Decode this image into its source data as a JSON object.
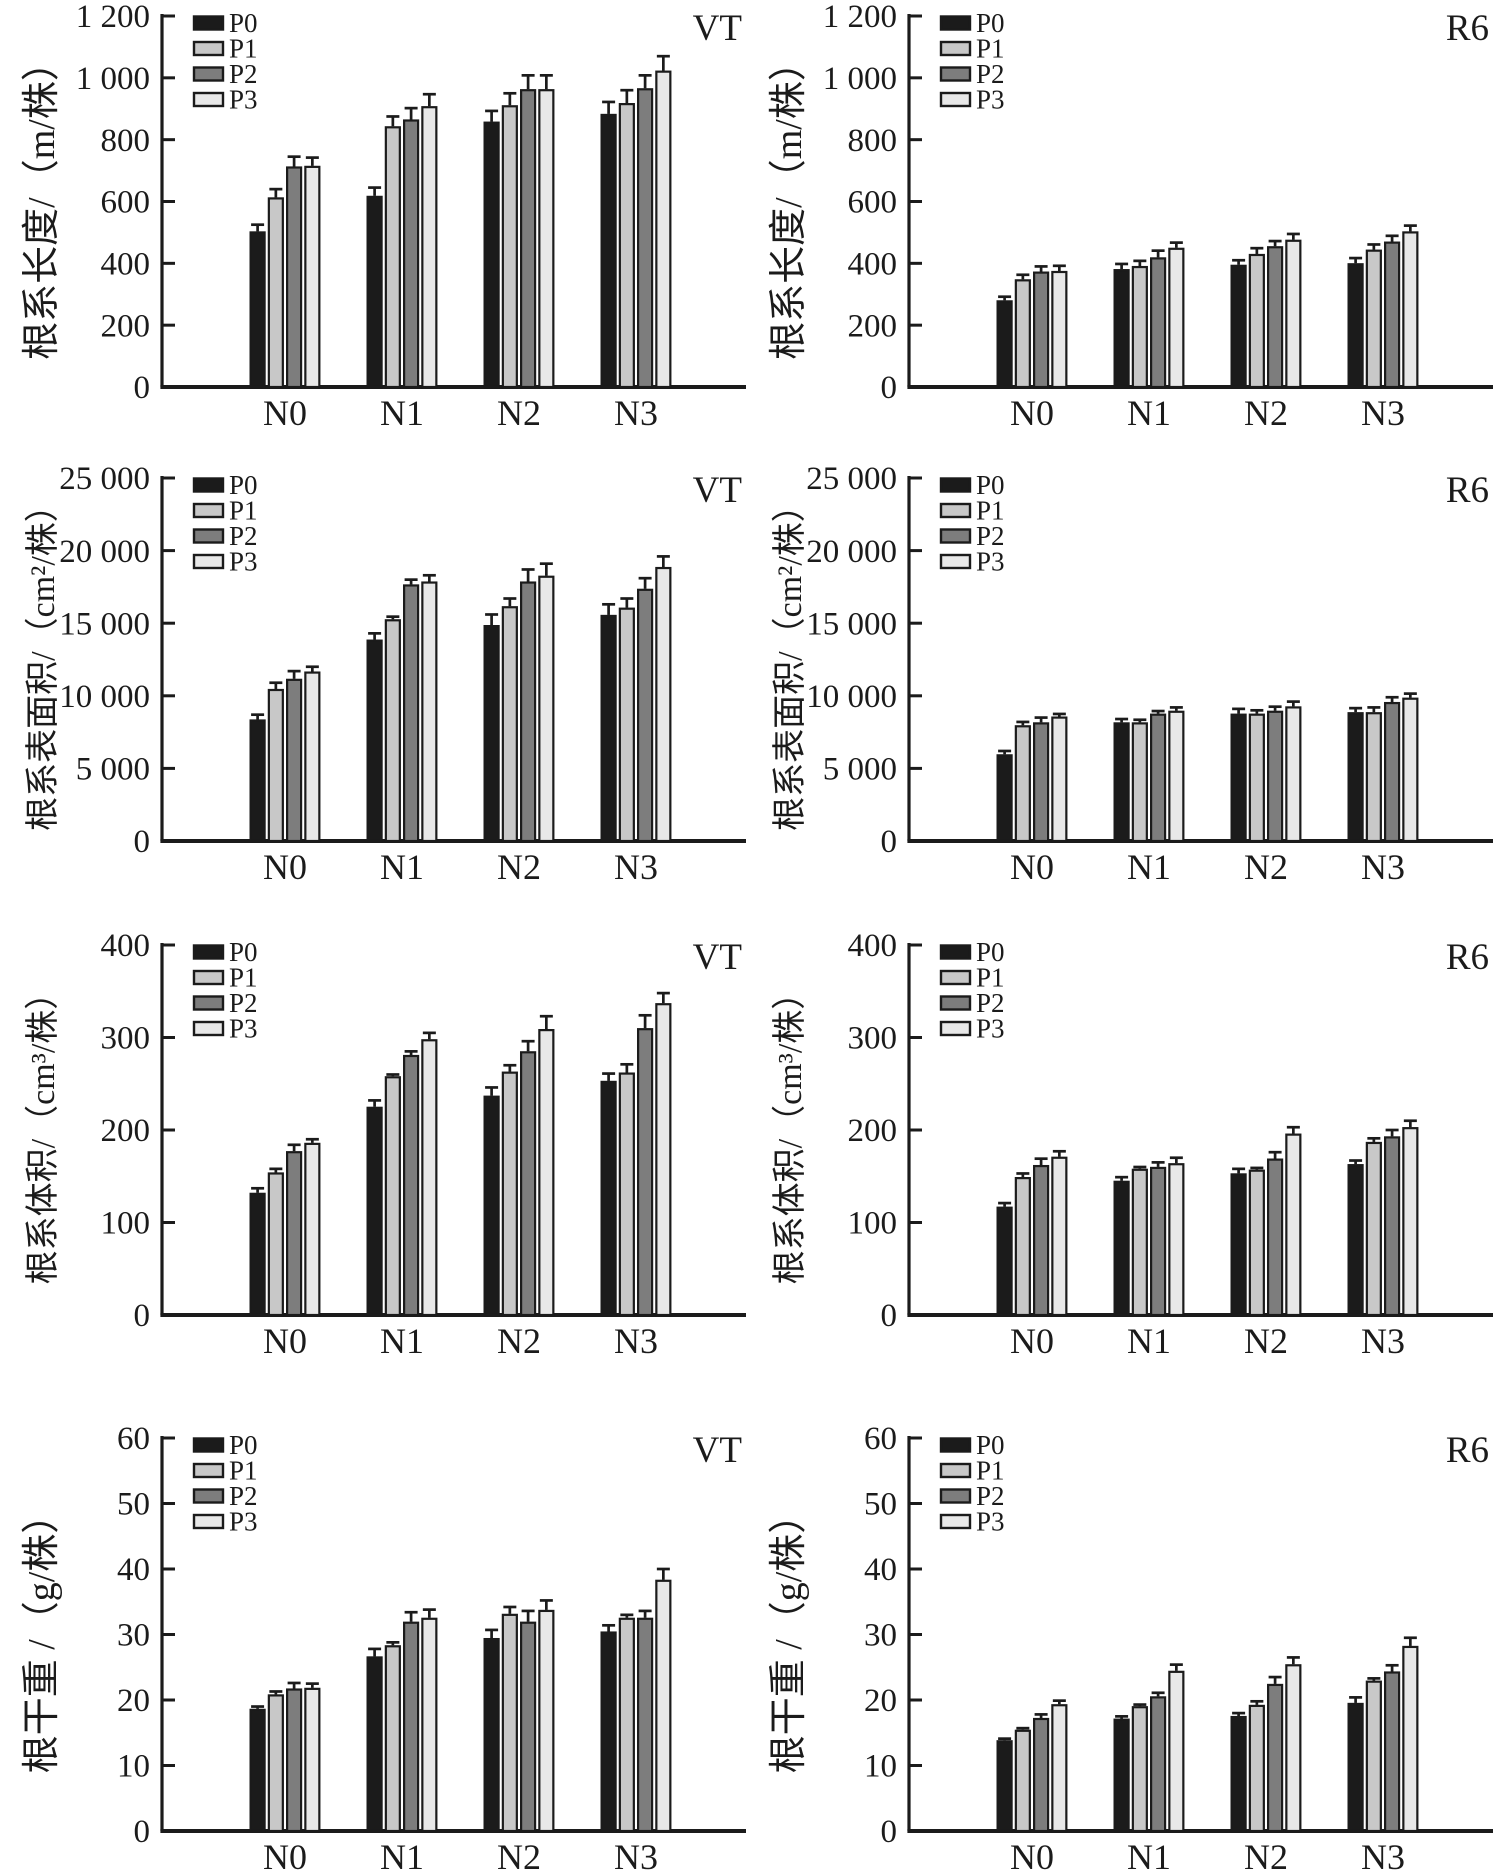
{
  "figure_title": "",
  "legend": {
    "labels": [
      "P0",
      "P1",
      "P2",
      "P3"
    ],
    "colors": [
      "#1b1b1b",
      "#c8c8c8",
      "#7d7d7d",
      "#e8e8e8"
    ],
    "border_color": "#1b1b1b"
  },
  "axis_color": "#1b1b1b",
  "background_color": "#ffffff",
  "chart_data": [
    {
      "type": "bar",
      "panel_label": "VT",
      "ylabel": "根系长度/（m/株）",
      "xlabel": "",
      "ylim": [
        0,
        1200
      ],
      "yticks": [
        0,
        200,
        400,
        600,
        800,
        1000,
        1200
      ],
      "ytick_labels": [
        "0",
        "200",
        "400",
        "600",
        "800",
        "1 000",
        "1 200"
      ],
      "categories": [
        "N0",
        "N1",
        "N2",
        "N3"
      ],
      "series": [
        {
          "name": "P0",
          "values": [
            500,
            615,
            855,
            880
          ],
          "errors": [
            25,
            30,
            38,
            42
          ]
        },
        {
          "name": "P1",
          "values": [
            610,
            840,
            908,
            915
          ],
          "errors": [
            30,
            35,
            42,
            45
          ]
        },
        {
          "name": "P2",
          "values": [
            710,
            862,
            960,
            963
          ],
          "errors": [
            35,
            40,
            48,
            45
          ]
        },
        {
          "name": "P3",
          "values": [
            712,
            905,
            960,
            1020
          ],
          "errors": [
            30,
            42,
            48,
            50
          ]
        }
      ]
    },
    {
      "type": "bar",
      "panel_label": "R6",
      "ylabel": "根系长度/（m/株）",
      "xlabel": "",
      "ylim": [
        0,
        1200
      ],
      "yticks": [
        0,
        200,
        400,
        600,
        800,
        1000,
        1200
      ],
      "ytick_labels": [
        "0",
        "200",
        "400",
        "600",
        "800",
        "1 000",
        "1 200"
      ],
      "categories": [
        "N0",
        "N1",
        "N2",
        "N3"
      ],
      "series": [
        {
          "name": "P0",
          "values": [
            277,
            378,
            392,
            397
          ],
          "errors": [
            15,
            20,
            18,
            20
          ]
        },
        {
          "name": "P1",
          "values": [
            345,
            388,
            427,
            441
          ],
          "errors": [
            18,
            20,
            22,
            20
          ]
        },
        {
          "name": "P2",
          "values": [
            370,
            416,
            452,
            467
          ],
          "errors": [
            20,
            25,
            20,
            22
          ]
        },
        {
          "name": "P3",
          "values": [
            372,
            447,
            473,
            500
          ],
          "errors": [
            20,
            20,
            22,
            22
          ]
        }
      ]
    },
    {
      "type": "bar",
      "panel_label": "VT",
      "ylabel": "根系表面积/（cm²/株）",
      "xlabel": "",
      "ylim": [
        0,
        25000
      ],
      "yticks": [
        0,
        5000,
        10000,
        15000,
        20000,
        25000
      ],
      "ytick_labels": [
        "0",
        "5 000",
        "10 000",
        "15 000",
        "20 000",
        "25 000"
      ],
      "categories": [
        "N0",
        "N1",
        "N2",
        "N3"
      ],
      "series": [
        {
          "name": "P0",
          "values": [
            8300,
            13800,
            14800,
            15500
          ],
          "errors": [
            400,
            500,
            800,
            800
          ]
        },
        {
          "name": "P1",
          "values": [
            10400,
            15200,
            16100,
            16000
          ],
          "errors": [
            500,
            250,
            600,
            700
          ]
        },
        {
          "name": "P2",
          "values": [
            11100,
            17600,
            17800,
            17300
          ],
          "errors": [
            600,
            400,
            900,
            800
          ]
        },
        {
          "name": "P3",
          "values": [
            11600,
            17800,
            18200,
            18800
          ],
          "errors": [
            400,
            500,
            900,
            800
          ]
        }
      ]
    },
    {
      "type": "bar",
      "panel_label": "R6",
      "ylabel": "根系表面积/（cm²/株）",
      "xlabel": "",
      "ylim": [
        0,
        25000
      ],
      "yticks": [
        0,
        5000,
        10000,
        15000,
        20000,
        25000
      ],
      "ytick_labels": [
        "0",
        "5 000",
        "10 000",
        "15 000",
        "20 000",
        "25 000"
      ],
      "categories": [
        "N0",
        "N1",
        "N2",
        "N3"
      ],
      "series": [
        {
          "name": "P0",
          "values": [
            5900,
            8100,
            8700,
            8800
          ],
          "errors": [
            300,
            300,
            400,
            350
          ]
        },
        {
          "name": "P1",
          "values": [
            7900,
            8100,
            8700,
            8800
          ],
          "errors": [
            300,
            250,
            300,
            400
          ]
        },
        {
          "name": "P2",
          "values": [
            8100,
            8700,
            8900,
            9500
          ],
          "errors": [
            400,
            250,
            350,
            400
          ]
        },
        {
          "name": "P3",
          "values": [
            8500,
            8900,
            9200,
            9800
          ],
          "errors": [
            250,
            300,
            400,
            350
          ]
        }
      ]
    },
    {
      "type": "bar",
      "panel_label": "VT",
      "ylabel": "根系体积/（cm³/株）",
      "xlabel": "",
      "ylim": [
        0,
        400
      ],
      "yticks": [
        0,
        100,
        200,
        300,
        400
      ],
      "ytick_labels": [
        "0",
        "100",
        "200",
        "300",
        "400"
      ],
      "categories": [
        "N0",
        "N1",
        "N2",
        "N3"
      ],
      "series": [
        {
          "name": "P0",
          "values": [
            131,
            224,
            236,
            252
          ],
          "errors": [
            6,
            8,
            10,
            9
          ]
        },
        {
          "name": "P1",
          "values": [
            153,
            257,
            262,
            261
          ],
          "errors": [
            5,
            3,
            8,
            10
          ]
        },
        {
          "name": "P2",
          "values": [
            176,
            280,
            284,
            309
          ],
          "errors": [
            8,
            5,
            12,
            15
          ]
        },
        {
          "name": "P3",
          "values": [
            185,
            297,
            308,
            336
          ],
          "errors": [
            5,
            8,
            15,
            12
          ]
        }
      ]
    },
    {
      "type": "bar",
      "panel_label": "R6",
      "ylabel": "根系体积/（cm³/株）",
      "xlabel": "",
      "ylim": [
        0,
        400
      ],
      "yticks": [
        0,
        100,
        200,
        300,
        400
      ],
      "ytick_labels": [
        "0",
        "100",
        "200",
        "300",
        "400"
      ],
      "categories": [
        "N0",
        "N1",
        "N2",
        "N3"
      ],
      "series": [
        {
          "name": "P0",
          "values": [
            116,
            144,
            152,
            162
          ],
          "errors": [
            5,
            5,
            6,
            5
          ]
        },
        {
          "name": "P1",
          "values": [
            148,
            157,
            156,
            186
          ],
          "errors": [
            5,
            3,
            3,
            5
          ]
        },
        {
          "name": "P2",
          "values": [
            161,
            159,
            168,
            192
          ],
          "errors": [
            8,
            6,
            8,
            8
          ]
        },
        {
          "name": "P3",
          "values": [
            170,
            163,
            195,
            202
          ],
          "errors": [
            7,
            7,
            8,
            8
          ]
        }
      ]
    },
    {
      "type": "bar",
      "panel_label": "VT",
      "ylabel": "根干重 /（g/株）",
      "xlabel": "",
      "ylim": [
        0,
        60
      ],
      "yticks": [
        0,
        10,
        20,
        30,
        40,
        50,
        60
      ],
      "ytick_labels": [
        "0",
        "10",
        "20",
        "30",
        "40",
        "50",
        "60"
      ],
      "categories": [
        "N0",
        "N1",
        "N2",
        "N3"
      ],
      "series": [
        {
          "name": "P0",
          "values": [
            18.5,
            26.5,
            29.3,
            30.3
          ],
          "errors": [
            0.5,
            1.3,
            1.4,
            1.1
          ]
        },
        {
          "name": "P1",
          "values": [
            20.7,
            28.2,
            33.0,
            32.4
          ],
          "errors": [
            0.6,
            0.6,
            1.2,
            0.6
          ]
        },
        {
          "name": "P2",
          "values": [
            21.6,
            31.8,
            31.8,
            32.4
          ],
          "errors": [
            1.0,
            1.6,
            1.8,
            1.2
          ]
        },
        {
          "name": "P3",
          "values": [
            21.7,
            32.4,
            33.6,
            38.2
          ],
          "errors": [
            0.8,
            1.4,
            1.6,
            1.8
          ]
        }
      ]
    },
    {
      "type": "bar",
      "panel_label": "R6",
      "ylabel": "根干重 /（g/株）",
      "xlabel": "",
      "ylim": [
        0,
        60
      ],
      "yticks": [
        0,
        10,
        20,
        30,
        40,
        50,
        60
      ],
      "ytick_labels": [
        "0",
        "10",
        "20",
        "30",
        "40",
        "50",
        "60"
      ],
      "categories": [
        "N0",
        "N1",
        "N2",
        "N3"
      ],
      "series": [
        {
          "name": "P0",
          "values": [
            13.7,
            17.0,
            17.4,
            19.4
          ],
          "errors": [
            0.4,
            0.5,
            0.6,
            1.0
          ]
        },
        {
          "name": "P1",
          "values": [
            15.3,
            18.9,
            19.1,
            22.8
          ],
          "errors": [
            0.4,
            0.4,
            0.7,
            0.5
          ]
        },
        {
          "name": "P2",
          "values": [
            17.1,
            20.4,
            22.3,
            24.2
          ],
          "errors": [
            0.7,
            0.7,
            1.2,
            1.1
          ]
        },
        {
          "name": "P3",
          "values": [
            19.2,
            24.3,
            25.3,
            28.1
          ],
          "errors": [
            0.7,
            1.1,
            1.2,
            1.4
          ]
        }
      ]
    }
  ]
}
